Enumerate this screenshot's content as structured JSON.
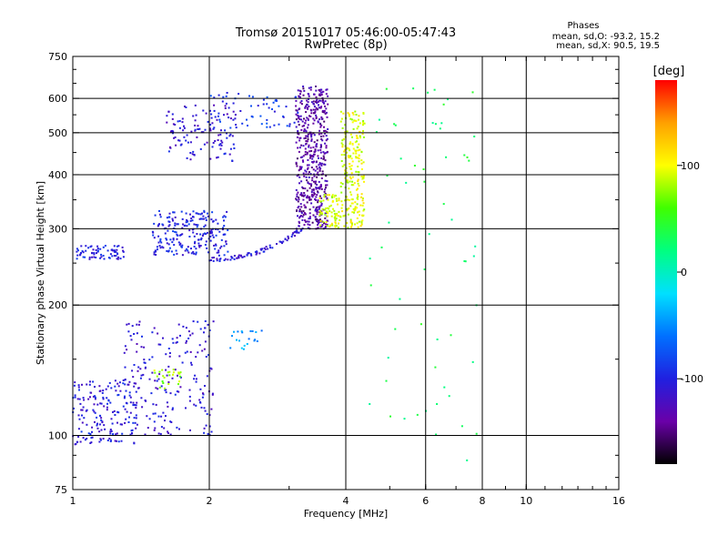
{
  "header": {
    "title_line1": "Tromsø 20151017 05:46:00-05:47:43",
    "title_line2": "RwPretec (8p)"
  },
  "stats": {
    "heading": "Phases",
    "o_line": "mean, sd,O: -93.2, 15.2",
    "x_line": "mean, sd,X:  90.5, 19.5"
  },
  "colorbar": {
    "label": "[deg]",
    "ticks": [
      {
        "value": 100,
        "label": "100"
      },
      {
        "value": 0,
        "label": "0"
      },
      {
        "value": -100,
        "label": "-100"
      }
    ],
    "range": [
      -180,
      180
    ],
    "colors": [
      "#000000",
      "#6a00a8",
      "#2020e0",
      "#0070ff",
      "#00e0ff",
      "#00ff80",
      "#40ff00",
      "#ffff00",
      "#ffa000",
      "#ff0000"
    ]
  },
  "chart_data": {
    "type": "scatter",
    "xlabel": "Frequency [MHz]",
    "ylabel": "Stationary phase Virtual Height [km]",
    "x_scale": "log2",
    "y_scale": "log",
    "xlim": [
      1,
      16
    ],
    "ylim": [
      75,
      750
    ],
    "x_ticks": [
      {
        "value": 1,
        "label": "1"
      },
      {
        "value": 2,
        "label": "2"
      },
      {
        "value": 4,
        "label": "4"
      },
      {
        "value": 6,
        "label": "6"
      },
      {
        "value": 8,
        "label": "8"
      },
      {
        "value": 10,
        "label": "10"
      },
      {
        "value": 16,
        "label": "16"
      }
    ],
    "x_grid": [
      2,
      4,
      6,
      8,
      10
    ],
    "y_ticks": [
      {
        "value": 75,
        "label": "75"
      },
      {
        "value": 100,
        "label": "100"
      },
      {
        "value": 200,
        "label": "200"
      },
      {
        "value": 300,
        "label": "300"
      },
      {
        "value": 400,
        "label": "400"
      },
      {
        "value": 500,
        "label": "500"
      },
      {
        "value": 600,
        "label": "600"
      },
      {
        "value": 750,
        "label": "750"
      }
    ],
    "y_grid": [
      100,
      200,
      300,
      400,
      500,
      600
    ],
    "point_groups": [
      {
        "x": [
          1.0,
          1.4
        ],
        "y": [
          95,
          135
        ],
        "phase": -105,
        "count": 180,
        "shape": "fill"
      },
      {
        "x": [
          1.3,
          2.05
        ],
        "y": [
          100,
          185
        ],
        "phase": -110,
        "count": 200,
        "shape": "fill"
      },
      {
        "x": [
          1.5,
          1.75
        ],
        "y": [
          128,
          142
        ],
        "phase": 80,
        "count": 25,
        "shape": "fill"
      },
      {
        "x": [
          2.2,
          2.7
        ],
        "y": [
          158,
          175
        ],
        "phase": -45,
        "count": 20,
        "shape": "fill"
      },
      {
        "x": [
          1.02,
          1.3
        ],
        "y": [
          255,
          275
        ],
        "phase": -100,
        "count": 70,
        "shape": "fill"
      },
      {
        "x": [
          1.5,
          2.2
        ],
        "y": [
          260,
          330
        ],
        "phase": -100,
        "count": 220,
        "shape": "fill"
      },
      {
        "x": [
          2.0,
          3.2
        ],
        "y": [
          255,
          300
        ],
        "phase": -110,
        "count": 80,
        "shape": "curve_bottom"
      },
      {
        "x": [
          1.6,
          2.3
        ],
        "y": [
          430,
          580
        ],
        "phase": -110,
        "count": 120,
        "shape": "fill"
      },
      {
        "x": [
          2.0,
          3.2
        ],
        "y": [
          510,
          620
        ],
        "phase": -90,
        "count": 60,
        "shape": "fill"
      },
      {
        "x": [
          3.1,
          3.65
        ],
        "y": [
          300,
          640
        ],
        "phase": -135,
        "count": 520,
        "shape": "fill"
      },
      {
        "x": [
          3.5,
          4.4
        ],
        "y": [
          300,
          360
        ],
        "phase": 95,
        "count": 150,
        "shape": "fill"
      },
      {
        "x": [
          3.9,
          4.4
        ],
        "y": [
          360,
          560
        ],
        "phase": 95,
        "count": 160,
        "shape": "fill"
      },
      {
        "x": [
          4.5,
          7.8
        ],
        "y": [
          80,
          660
        ],
        "phase": 30,
        "count": 60,
        "shape": "sparse"
      }
    ]
  }
}
